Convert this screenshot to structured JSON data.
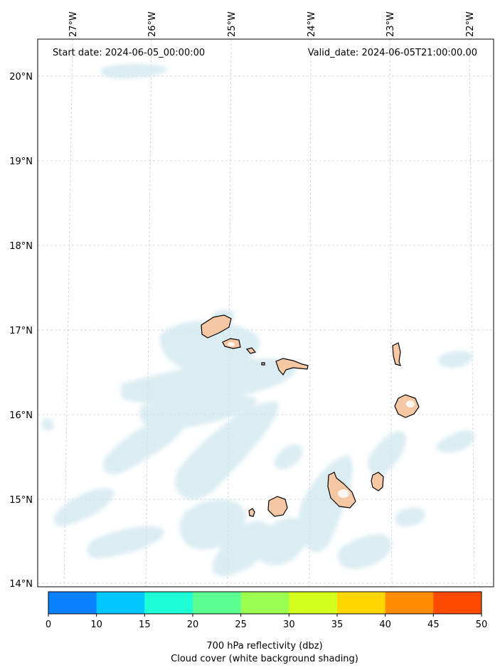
{
  "map": {
    "start_label": "Start date: 2024-06-05_00:00:00",
    "valid_label": "Valid_date: 2024-06-05T21:00:00.00",
    "lon_labels": [
      "27°W",
      "26°W",
      "25°W",
      "24°W",
      "23°W",
      "22°W"
    ],
    "lat_labels": [
      "20°N",
      "19°N",
      "18°N",
      "17°N",
      "16°N",
      "15°N",
      "14°N"
    ],
    "gridlines": true,
    "colors": {
      "cloud": "#cfe7ef",
      "land": "#f5c7a3",
      "coast": "#000000",
      "grid": "#c8c8c8"
    }
  },
  "colorbar": {
    "ticks": [
      "0",
      "10",
      "15",
      "20",
      "25",
      "30",
      "35",
      "40",
      "45",
      "50"
    ],
    "colors": [
      "#0a82ff",
      "#00c8ff",
      "#1effd7",
      "#5aff91",
      "#9bff50",
      "#d4ff1e",
      "#ffd700",
      "#ff8c00",
      "#ff4b00"
    ],
    "label_line1": "700 hPa reflectivity (dbz)",
    "label_line2": "Cloud cover (white background shading)"
  }
}
